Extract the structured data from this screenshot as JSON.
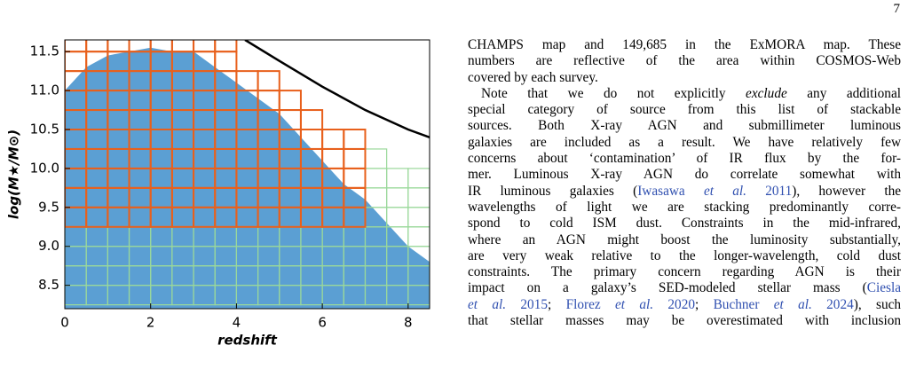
{
  "page_number": "7",
  "chart_data": {
    "type": "area",
    "x_label": "redshift",
    "y_label": "log(M★/M⊙)",
    "xlim": [
      0,
      8.5
    ],
    "ylim": [
      8.2,
      11.65
    ],
    "xticks": [
      0,
      2,
      4,
      6,
      8
    ],
    "yticks": [
      {
        "value": 8.5,
        "label": "8.5"
      },
      {
        "value": 9,
        "label": "9.0"
      },
      {
        "value": 9.5,
        "label": "9.5"
      },
      {
        "value": 10,
        "label": "10.0"
      },
      {
        "value": 10.5,
        "label": "10.5"
      },
      {
        "value": 11,
        "label": "11.0"
      },
      {
        "value": 11.5,
        "label": "11.5"
      }
    ],
    "area": {
      "color": "#5b9fd3",
      "x": [
        0,
        0.5,
        1,
        1.5,
        2,
        2.5,
        3,
        3.5,
        4,
        4.5,
        5,
        5.5,
        6,
        6.5,
        7,
        7.5,
        8,
        8.5
      ],
      "values": [
        11.0,
        11.3,
        11.45,
        11.5,
        11.55,
        11.5,
        11.5,
        11.3,
        11.1,
        10.9,
        10.7,
        10.4,
        10.1,
        9.8,
        9.6,
        9.3,
        9.0,
        8.8
      ]
    },
    "line": {
      "color": "#000000",
      "x": [
        4.2,
        5,
        6,
        7,
        8,
        8.5
      ],
      "values": [
        11.65,
        11.38,
        11.05,
        10.75,
        10.5,
        10.4
      ]
    },
    "green_cells": {
      "color": "#9ad89a",
      "step": 0.25,
      "bottom": 8.25,
      "x_edges": [
        0,
        0.5,
        1,
        1.5,
        2,
        2.5,
        3,
        3.5,
        4,
        4.5,
        5,
        5.5,
        6,
        6.5,
        7,
        7.5,
        8,
        8.5
      ],
      "tops": [
        9.25,
        9.25,
        9.25,
        9.25,
        9.25,
        9.25,
        9.25,
        9.25,
        9.25,
        9.25,
        9.25,
        9.25,
        9.25,
        9.25,
        10.25,
        10.0,
        10.0
      ]
    },
    "orange_cells": {
      "color": "#e8601c",
      "step": 0.25,
      "bottom": 9.25,
      "x_edges": [
        0,
        0.5,
        1,
        1.5,
        2,
        2.5,
        3,
        3.5,
        4,
        4.5,
        5,
        5.5,
        6,
        6.5,
        7
      ],
      "tops": [
        11.75,
        11.75,
        11.75,
        11.75,
        11.75,
        11.75,
        11.75,
        11.75,
        11.25,
        11.25,
        11.0,
        10.75,
        10.5,
        10.5
      ]
    }
  },
  "text": {
    "lines": [
      [
        [
          "CHAMPS map and 149,685 in the ExMORA map. These",
          ""
        ]
      ],
      [
        [
          "numbers are reflective of the area within COSMOS-Web",
          ""
        ]
      ],
      [
        [
          "covered by each survey.",
          ""
        ]
      ],
      [
        [
          "Note that we do not explicitly ",
          ""
        ],
        [
          "exclude",
          "i"
        ],
        [
          " any additional",
          ""
        ]
      ],
      [
        [
          "special category of source from this list of stackable",
          ""
        ]
      ],
      [
        [
          "sources. Both X-ray AGN and submillimeter luminous",
          ""
        ]
      ],
      [
        [
          "galaxies are included as a result. We have relatively few",
          ""
        ]
      ],
      [
        [
          "concerns about ‘contamination’ of IR flux by the for-",
          ""
        ]
      ],
      [
        [
          "mer. Luminous X-ray AGN do correlate somewhat with",
          ""
        ]
      ],
      [
        [
          "IR luminous galaxies (",
          ""
        ],
        [
          "Iwasawa ",
          "l"
        ],
        [
          "et al.",
          "li"
        ],
        [
          " 2011",
          "l"
        ],
        [
          "), however the",
          ""
        ]
      ],
      [
        [
          "wavelengths of light we are stacking predominantly corre-",
          ""
        ]
      ],
      [
        [
          "spond to cold ISM dust. Constraints in the mid-infrared,",
          ""
        ]
      ],
      [
        [
          "where an AGN might boost the luminosity substantially,",
          ""
        ]
      ],
      [
        [
          "are very weak relative to the longer-wavelength, cold dust",
          ""
        ]
      ],
      [
        [
          "constraints. The primary concern regarding AGN is their",
          ""
        ]
      ],
      [
        [
          "impact on a galaxy’s SED-modeled stellar mass (",
          ""
        ],
        [
          "Ciesla",
          "l"
        ]
      ],
      [
        [
          "et al.",
          "li"
        ],
        [
          " 2015",
          "l"
        ],
        [
          "; ",
          ""
        ],
        [
          "Florez ",
          "l"
        ],
        [
          "et al.",
          "li"
        ],
        [
          " 2020",
          "l"
        ],
        [
          "; ",
          ""
        ],
        [
          "Buchner ",
          "l"
        ],
        [
          "et al.",
          "li"
        ],
        [
          " 2024",
          "l"
        ],
        [
          "), such",
          ""
        ]
      ],
      [
        [
          "that stellar masses may be overestimated with inclusion",
          ""
        ]
      ]
    ]
  }
}
